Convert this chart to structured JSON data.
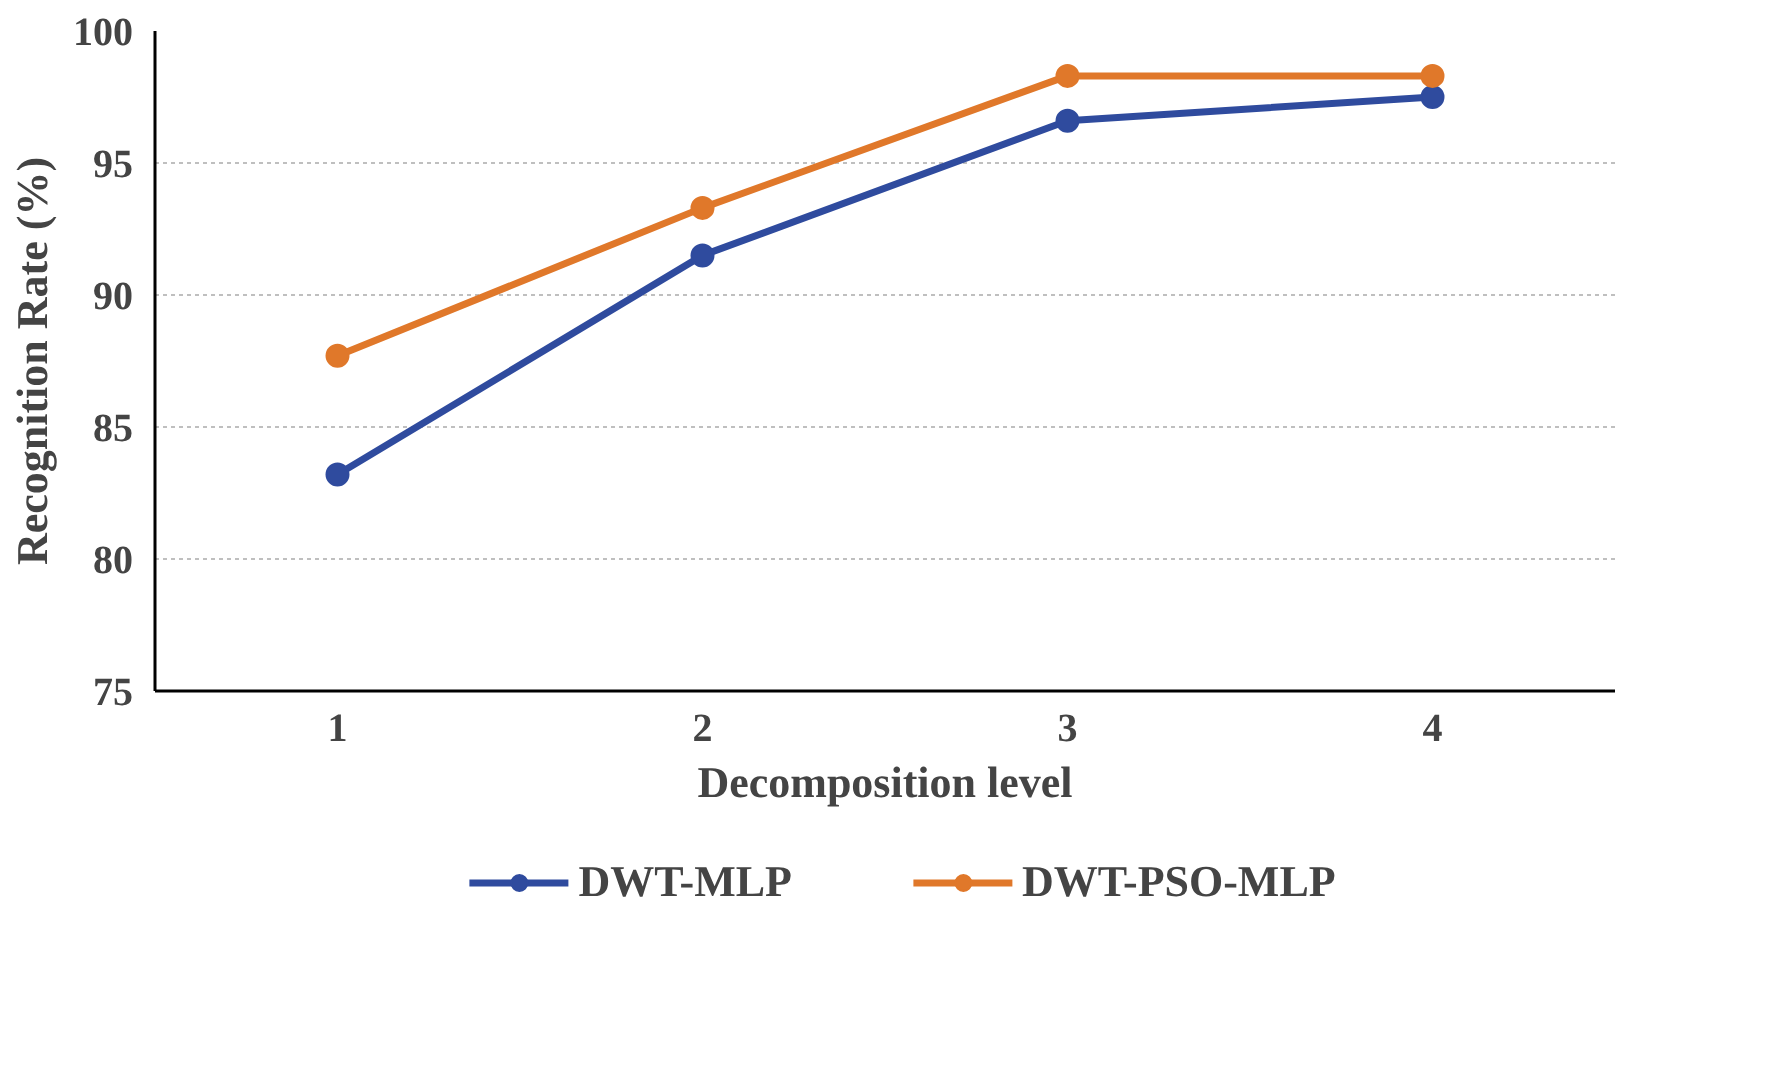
{
  "chart_data": {
    "type": "line",
    "xlabel": "Decomposition level",
    "ylabel": "Recognition Rate (%)",
    "categories": [
      "1",
      "2",
      "3",
      "4"
    ],
    "series": [
      {
        "name": "DWT-MLP",
        "color": "#2f4b9e",
        "values": [
          83.2,
          91.5,
          96.6,
          97.5
        ]
      },
      {
        "name": "DWT-PSO-MLP",
        "color": "#e0782a",
        "values": [
          87.7,
          93.3,
          98.3,
          98.3
        ]
      }
    ],
    "ylim": [
      75,
      100
    ],
    "yticks": [
      75,
      80,
      85,
      90,
      95,
      100
    ],
    "grid": "y",
    "legend": "bottom",
    "marker": "circle",
    "line_style": "solid"
  }
}
